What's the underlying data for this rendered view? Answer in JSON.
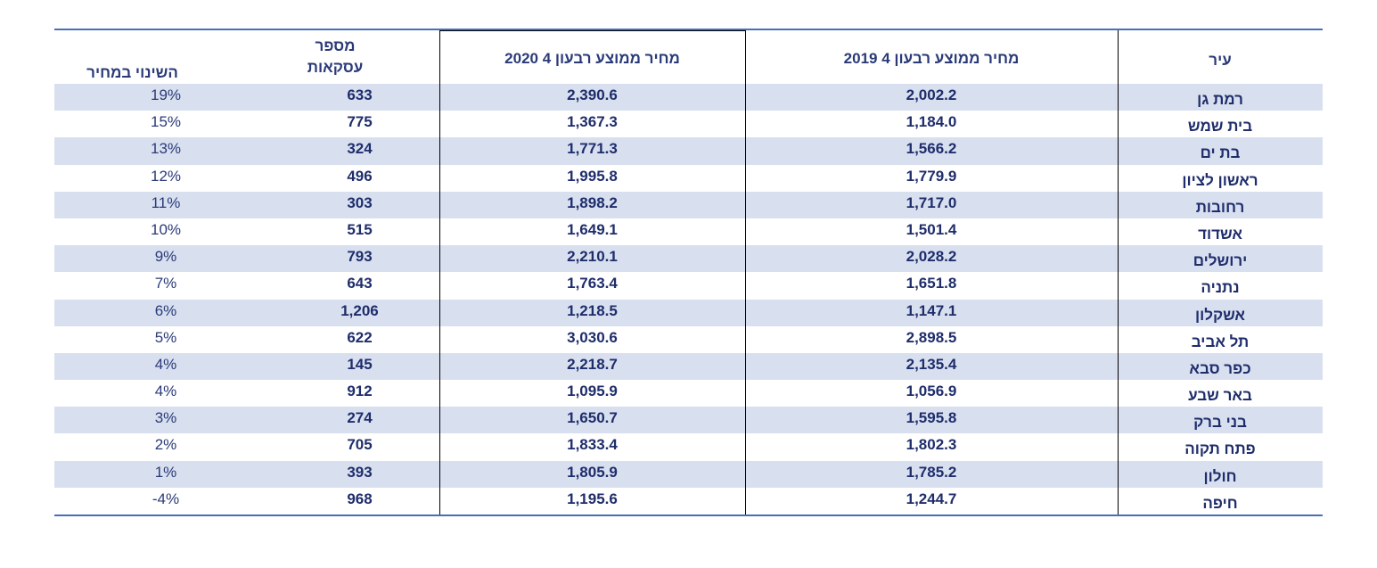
{
  "table": {
    "headers": {
      "city": "עיר",
      "price_q4_2019": "מחיר ממוצע רבעון 4 2019",
      "price_q4_2020": "מחיר ממוצע רבעון 4 2020",
      "transactions_line1": "מספר",
      "transactions_line2": "עסקאות",
      "price_change": "השינוי במחיר"
    },
    "rows": [
      {
        "city": "רמת גן",
        "p2019": "2,002.2",
        "p2020": "2,390.6",
        "count": "633",
        "change": "19%"
      },
      {
        "city": "בית שמש",
        "p2019": "1,184.0",
        "p2020": "1,367.3",
        "count": "775",
        "change": "15%"
      },
      {
        "city": "בת ים",
        "p2019": "1,566.2",
        "p2020": "1,771.3",
        "count": "324",
        "change": "13%"
      },
      {
        "city": "ראשון לציון",
        "p2019": "1,779.9",
        "p2020": "1,995.8",
        "count": "496",
        "change": "12%"
      },
      {
        "city": "רחובות",
        "p2019": "1,717.0",
        "p2020": "1,898.2",
        "count": "303",
        "change": "11%"
      },
      {
        "city": "אשדוד",
        "p2019": "1,501.4",
        "p2020": "1,649.1",
        "count": "515",
        "change": "10%"
      },
      {
        "city": "ירושלים",
        "p2019": "2,028.2",
        "p2020": "2,210.1",
        "count": "793",
        "change": "9%"
      },
      {
        "city": "נתניה",
        "p2019": "1,651.8",
        "p2020": "1,763.4",
        "count": "643",
        "change": "7%"
      },
      {
        "city": "אשקלון",
        "p2019": "1,147.1",
        "p2020": "1,218.5",
        "count": "1,206",
        "change": "6%"
      },
      {
        "city": "תל אביב",
        "p2019": "2,898.5",
        "p2020": "3,030.6",
        "count": "622",
        "change": "5%"
      },
      {
        "city": "כפר סבא",
        "p2019": "2,135.4",
        "p2020": "2,218.7",
        "count": "145",
        "change": "4%"
      },
      {
        "city": "באר שבע",
        "p2019": "1,056.9",
        "p2020": "1,095.9",
        "count": "912",
        "change": "4%"
      },
      {
        "city": "בני ברק",
        "p2019": "1,595.8",
        "p2020": "1,650.7",
        "count": "274",
        "change": "3%"
      },
      {
        "city": "פתח תקוה",
        "p2019": "1,802.3",
        "p2020": "1,833.4",
        "count": "705",
        "change": "2%"
      },
      {
        "city": "חולון",
        "p2019": "1,785.2",
        "p2020": "1,805.9",
        "count": "393",
        "change": "1%"
      },
      {
        "city": "חיפה",
        "p2019": "1,244.7",
        "p2020": "1,195.6",
        "count": "968",
        "change": "-4%"
      }
    ]
  },
  "colors": {
    "rule": "#4a6fb5",
    "row_shade": "#d8e0f0",
    "text": "#1f2d6b"
  }
}
